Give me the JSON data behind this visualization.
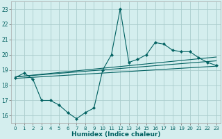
{
  "xlabel": "Humidex (Indice chaleur)",
  "x_values": [
    0,
    1,
    2,
    3,
    4,
    5,
    6,
    7,
    8,
    9,
    10,
    11,
    12,
    13,
    14,
    15,
    16,
    17,
    18,
    19,
    20,
    21,
    22,
    23
  ],
  "line1": [
    18.5,
    18.8,
    18.4,
    17.0,
    17.0,
    16.7,
    16.2,
    15.8,
    16.2,
    16.5,
    19.0,
    20.0,
    23.0,
    19.5,
    19.7,
    20.0,
    20.8,
    20.7,
    20.3,
    20.2,
    20.2,
    19.8,
    19.5,
    19.3
  ],
  "line2_x": [
    0,
    23
  ],
  "line2_y": [
    18.55,
    19.85
  ],
  "line3_x": [
    0,
    23
  ],
  "line3_y": [
    18.55,
    19.6
  ],
  "line4_x": [
    0,
    23
  ],
  "line4_y": [
    18.45,
    19.25
  ],
  "xlim": [
    -0.5,
    23.5
  ],
  "ylim": [
    15.5,
    23.5
  ],
  "yticks": [
    16,
    17,
    18,
    19,
    20,
    21,
    22,
    23
  ],
  "xticks": [
    0,
    1,
    2,
    3,
    4,
    5,
    6,
    7,
    8,
    9,
    10,
    11,
    12,
    13,
    14,
    15,
    16,
    17,
    18,
    19,
    20,
    21,
    22,
    23
  ],
  "line_color": "#006060",
  "bg_color": "#d4eeee",
  "grid_color": "#b8d8d8",
  "marker": "D",
  "marker_size": 2.2,
  "line_width": 0.8
}
